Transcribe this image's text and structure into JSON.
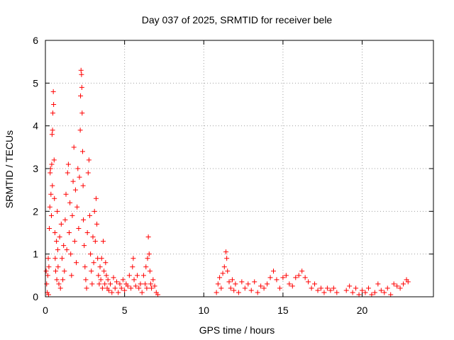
{
  "chart_data": {
    "type": "scatter",
    "title": "Day 037 of 2025, SRMTID for receiver bele",
    "xlabel": "GPS time / hours",
    "ylabel": "SRMTID / TECUs",
    "xlim": [
      0,
      24.5
    ],
    "ylim": [
      0,
      6
    ],
    "xticks": [
      0,
      5,
      10,
      15,
      20
    ],
    "yticks": [
      0,
      1,
      2,
      3,
      4,
      5,
      6
    ],
    "grid": true,
    "marker": "plus",
    "series_color": "#ff0000",
    "series": [
      {
        "name": "SRMTID",
        "points": [
          [
            0.05,
            0.6
          ],
          [
            0.08,
            0.3
          ],
          [
            0.12,
            0.1
          ],
          [
            0.15,
            0.5
          ],
          [
            0.18,
            0.9
          ],
          [
            0.2,
            0.05
          ],
          [
            0.22,
            0.7
          ],
          [
            0.25,
            1.6
          ],
          [
            0.28,
            2.1
          ],
          [
            0.3,
            2.9
          ],
          [
            0.32,
            3.0
          ],
          [
            0.35,
            2.4
          ],
          [
            0.38,
            1.9
          ],
          [
            0.4,
            3.1
          ],
          [
            0.42,
            3.8
          ],
          [
            0.44,
            2.6
          ],
          [
            0.45,
            3.9
          ],
          [
            0.47,
            4.3
          ],
          [
            0.5,
            4.8
          ],
          [
            0.52,
            4.5
          ],
          [
            0.55,
            3.2
          ],
          [
            0.57,
            2.3
          ],
          [
            0.6,
            1.5
          ],
          [
            0.62,
            0.9
          ],
          [
            0.65,
            0.6
          ],
          [
            0.7,
            1.3
          ],
          [
            0.72,
            0.4
          ],
          [
            0.75,
            2.0
          ],
          [
            0.78,
            1.1
          ],
          [
            0.8,
            0.7
          ],
          [
            0.85,
            0.3
          ],
          [
            0.9,
            1.4
          ],
          [
            0.95,
            0.2
          ],
          [
            1.0,
            1.7
          ],
          [
            1.05,
            0.9
          ],
          [
            1.1,
            0.4
          ],
          [
            1.15,
            1.2
          ],
          [
            1.2,
            0.6
          ],
          [
            1.25,
            1.8
          ],
          [
            1.3,
            2.4
          ],
          [
            1.35,
            1.1
          ],
          [
            1.4,
            2.9
          ],
          [
            1.45,
            3.1
          ],
          [
            1.5,
            1.5
          ],
          [
            1.55,
            2.2
          ],
          [
            1.6,
            1.0
          ],
          [
            1.65,
            0.5
          ],
          [
            1.7,
            1.9
          ],
          [
            1.75,
            2.7
          ],
          [
            1.8,
            3.5
          ],
          [
            1.85,
            1.3
          ],
          [
            1.9,
            2.5
          ],
          [
            1.95,
            0.8
          ],
          [
            2.0,
            2.1
          ],
          [
            2.05,
            3.0
          ],
          [
            2.1,
            1.6
          ],
          [
            2.15,
            2.8
          ],
          [
            2.2,
            3.9
          ],
          [
            2.22,
            4.7
          ],
          [
            2.25,
            5.3
          ],
          [
            2.28,
            5.2
          ],
          [
            2.3,
            4.9
          ],
          [
            2.32,
            4.3
          ],
          [
            2.35,
            3.4
          ],
          [
            2.38,
            2.6
          ],
          [
            2.4,
            1.8
          ],
          [
            2.45,
            1.2
          ],
          [
            2.5,
            0.7
          ],
          [
            2.55,
            0.4
          ],
          [
            2.6,
            0.2
          ],
          [
            2.65,
            1.5
          ],
          [
            2.7,
            2.9
          ],
          [
            2.75,
            3.2
          ],
          [
            2.8,
            1.9
          ],
          [
            2.85,
            1.0
          ],
          [
            2.9,
            0.6
          ],
          [
            2.95,
            0.3
          ],
          [
            3.0,
            1.4
          ],
          [
            3.05,
            0.8
          ],
          [
            3.1,
            2.0
          ],
          [
            3.15,
            1.3
          ],
          [
            3.2,
            2.3
          ],
          [
            3.25,
            1.7
          ],
          [
            3.3,
            0.9
          ],
          [
            3.35,
            0.5
          ],
          [
            3.4,
            0.3
          ],
          [
            3.45,
            0.7
          ],
          [
            3.5,
            0.4
          ],
          [
            3.55,
            0.9
          ],
          [
            3.6,
            0.2
          ],
          [
            3.65,
            1.3
          ],
          [
            3.7,
            0.6
          ],
          [
            3.75,
            0.3
          ],
          [
            3.8,
            0.8
          ],
          [
            3.85,
            0.5
          ],
          [
            3.9,
            0.2
          ],
          [
            3.95,
            0.4
          ],
          [
            4.0,
            0.15
          ],
          [
            4.1,
            0.3
          ],
          [
            4.2,
            0.1
          ],
          [
            4.3,
            0.45
          ],
          [
            4.4,
            0.2
          ],
          [
            4.5,
            0.35
          ],
          [
            4.6,
            0.1
          ],
          [
            4.7,
            0.3
          ],
          [
            4.8,
            0.2
          ],
          [
            4.9,
            0.4
          ],
          [
            5.0,
            0.15
          ],
          [
            5.1,
            0.3
          ],
          [
            5.2,
            0.25
          ],
          [
            5.3,
            0.5
          ],
          [
            5.4,
            0.2
          ],
          [
            5.5,
            0.7
          ],
          [
            5.55,
            0.9
          ],
          [
            5.6,
            0.4
          ],
          [
            5.7,
            0.25
          ],
          [
            5.8,
            0.5
          ],
          [
            5.9,
            0.2
          ],
          [
            6.0,
            0.3
          ],
          [
            6.1,
            0.1
          ],
          [
            6.2,
            0.5
          ],
          [
            6.3,
            0.3
          ],
          [
            6.35,
            0.7
          ],
          [
            6.4,
            0.2
          ],
          [
            6.45,
            0.9
          ],
          [
            6.5,
            1.4
          ],
          [
            6.55,
            1.0
          ],
          [
            6.6,
            0.6
          ],
          [
            6.65,
            0.3
          ],
          [
            6.7,
            0.2
          ],
          [
            6.8,
            0.4
          ],
          [
            6.9,
            0.25
          ],
          [
            7.0,
            0.1
          ],
          [
            7.1,
            0.05
          ],
          [
            10.8,
            0.1
          ],
          [
            10.9,
            0.3
          ],
          [
            11.0,
            0.45
          ],
          [
            11.1,
            0.2
          ],
          [
            11.2,
            0.55
          ],
          [
            11.3,
            0.7
          ],
          [
            11.4,
            1.05
          ],
          [
            11.45,
            0.9
          ],
          [
            11.5,
            0.6
          ],
          [
            11.6,
            0.35
          ],
          [
            11.7,
            0.2
          ],
          [
            11.8,
            0.4
          ],
          [
            11.9,
            0.15
          ],
          [
            12.0,
            0.3
          ],
          [
            12.2,
            0.1
          ],
          [
            12.4,
            0.35
          ],
          [
            12.6,
            0.2
          ],
          [
            12.8,
            0.3
          ],
          [
            13.0,
            0.15
          ],
          [
            13.2,
            0.35
          ],
          [
            13.4,
            0.1
          ],
          [
            13.6,
            0.25
          ],
          [
            13.8,
            0.2
          ],
          [
            14.0,
            0.3
          ],
          [
            14.2,
            0.45
          ],
          [
            14.4,
            0.6
          ],
          [
            14.6,
            0.4
          ],
          [
            14.8,
            0.2
          ],
          [
            15.0,
            0.45
          ],
          [
            15.2,
            0.5
          ],
          [
            15.4,
            0.3
          ],
          [
            15.6,
            0.25
          ],
          [
            15.8,
            0.45
          ],
          [
            16.0,
            0.5
          ],
          [
            16.2,
            0.6
          ],
          [
            16.4,
            0.45
          ],
          [
            16.6,
            0.35
          ],
          [
            16.8,
            0.2
          ],
          [
            17.0,
            0.3
          ],
          [
            17.2,
            0.15
          ],
          [
            17.4,
            0.2
          ],
          [
            17.6,
            0.1
          ],
          [
            17.8,
            0.2
          ],
          [
            18.0,
            0.15
          ],
          [
            18.2,
            0.2
          ],
          [
            18.4,
            0.1
          ],
          [
            19.0,
            0.15
          ],
          [
            19.2,
            0.25
          ],
          [
            19.4,
            0.1
          ],
          [
            19.6,
            0.2
          ],
          [
            19.8,
            0.05
          ],
          [
            20.0,
            0.15
          ],
          [
            20.2,
            0.1
          ],
          [
            20.4,
            0.2
          ],
          [
            20.6,
            0.05
          ],
          [
            20.8,
            0.1
          ],
          [
            21.0,
            0.3
          ],
          [
            21.2,
            0.15
          ],
          [
            21.4,
            0.1
          ],
          [
            21.6,
            0.2
          ],
          [
            21.8,
            0.05
          ],
          [
            22.0,
            0.3
          ],
          [
            22.2,
            0.25
          ],
          [
            22.4,
            0.2
          ],
          [
            22.6,
            0.3
          ],
          [
            22.8,
            0.4
          ],
          [
            22.9,
            0.35
          ]
        ]
      }
    ]
  }
}
